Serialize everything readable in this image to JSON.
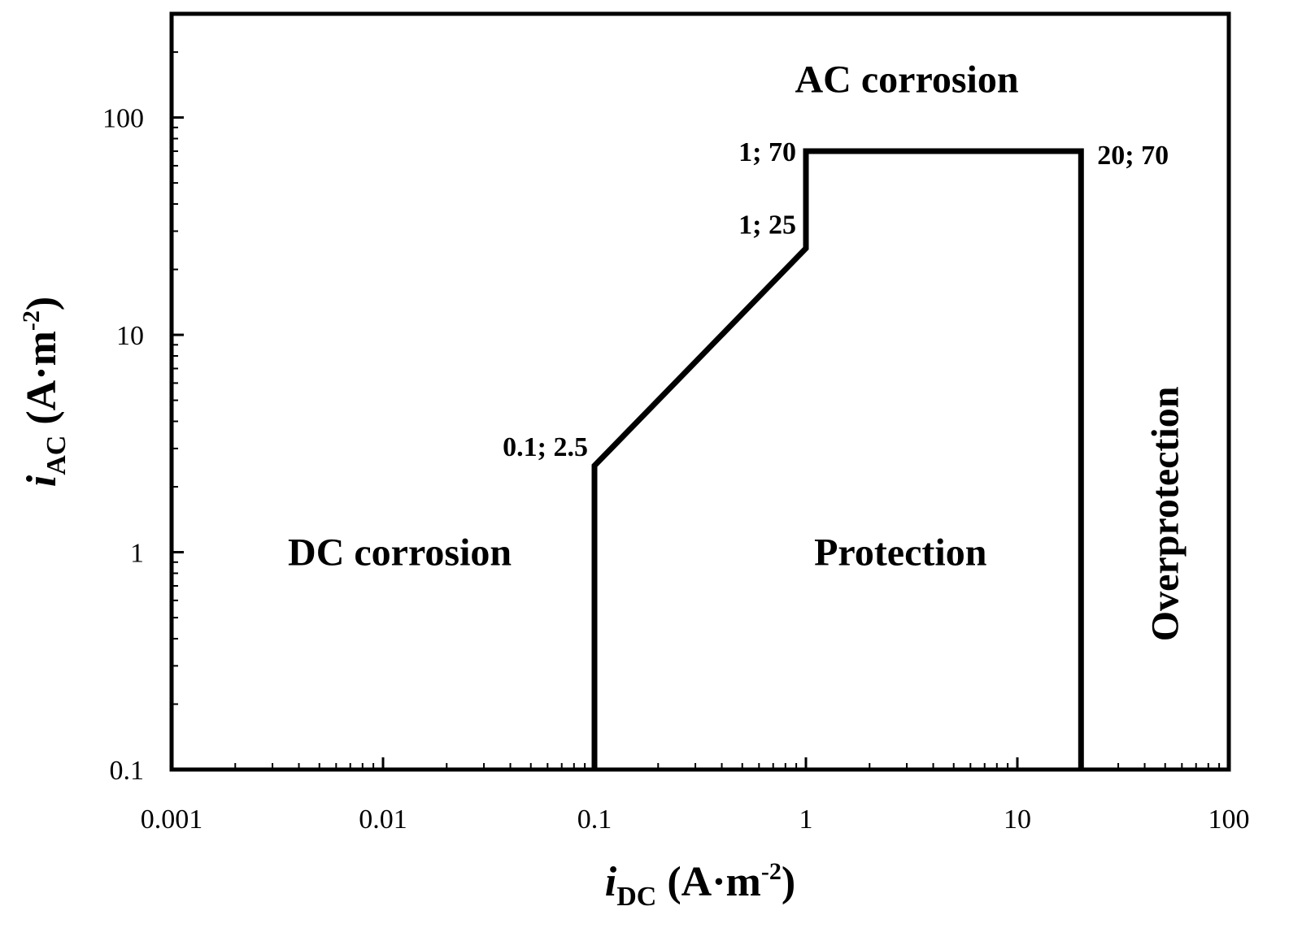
{
  "chart_data": {
    "type": "line",
    "x_scale": "log",
    "y_scale": "log",
    "xlim": [
      0.001,
      100
    ],
    "ylim": [
      0.1,
      300
    ],
    "grid": false,
    "legend": "none",
    "x_ticks": [
      0.001,
      0.01,
      0.1,
      1,
      10,
      100
    ],
    "x_tick_labels": [
      "0.001",
      "0.01",
      "0.1",
      "1",
      "10",
      "100"
    ],
    "y_ticks": [
      0.1,
      1,
      10,
      100
    ],
    "y_tick_labels": [
      "0.1",
      "1",
      "10",
      "100"
    ],
    "xlabel": {
      "italic": "i",
      "sub": "DC",
      "unit": " (A·m",
      "sup": "-2",
      "close": ")"
    },
    "ylabel": {
      "italic": "i",
      "sub": "AC",
      "unit": " (A·m",
      "sup": "-2",
      "close": ")"
    },
    "series": [
      {
        "x": [
          0.1,
          0.1,
          1,
          1,
          20,
          20
        ],
        "y": [
          0.1,
          2.5,
          25,
          70,
          70,
          0.1
        ],
        "color": "#000000"
      }
    ],
    "point_labels": [
      {
        "text": "0.1; 2.5",
        "x": 0.1,
        "y": 2.5
      },
      {
        "text": "1; 25",
        "x": 1,
        "y": 25
      },
      {
        "text": "1; 70",
        "x": 1,
        "y": 70
      },
      {
        "text": "20; 70",
        "x": 20,
        "y": 70
      }
    ],
    "region_labels": [
      {
        "text": "AC corrosion",
        "x": 3,
        "y": 150
      },
      {
        "text": "DC corrosion",
        "x": 0.012,
        "y": 1
      },
      {
        "text": "Protection",
        "x": 2.8,
        "y": 1
      },
      {
        "text": "Overprotection",
        "x": 50,
        "y": 1.5
      }
    ]
  }
}
